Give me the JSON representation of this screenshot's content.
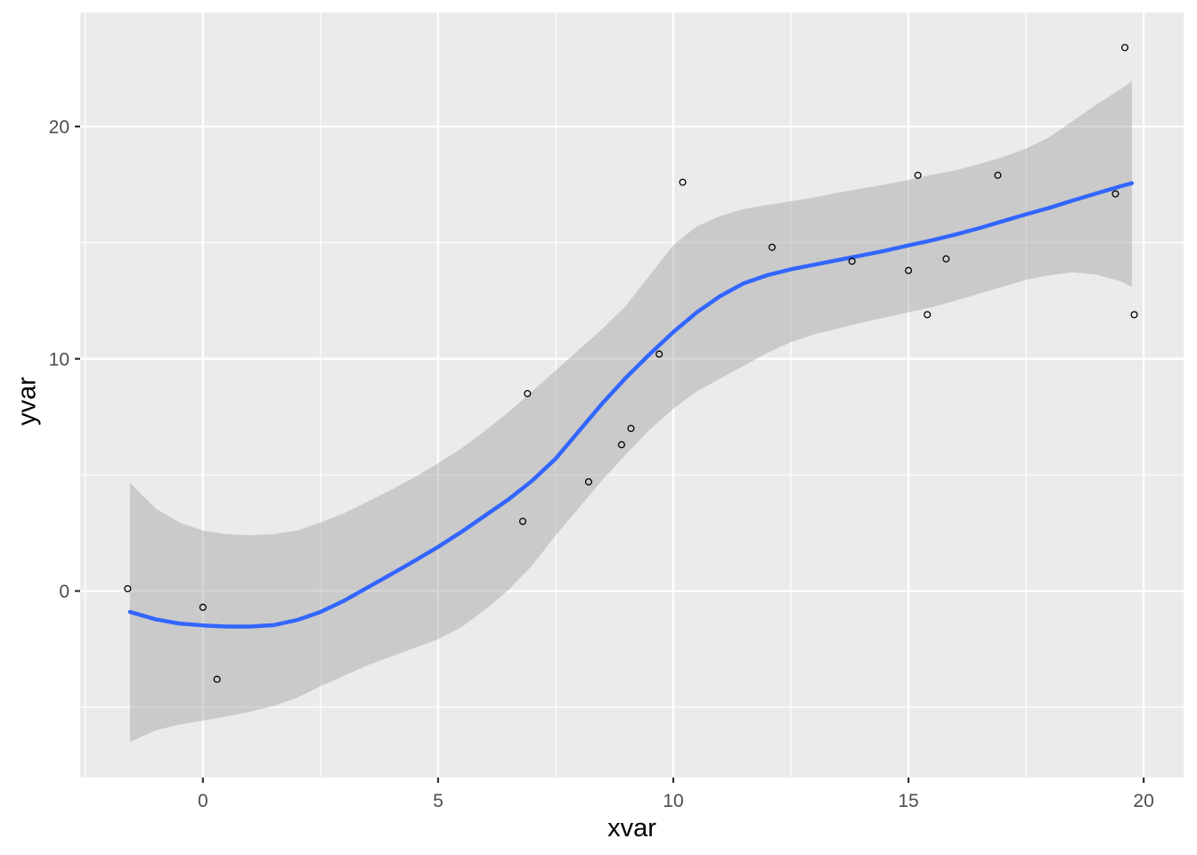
{
  "chart_data": {
    "type": "scatter",
    "title": "",
    "xlabel": "xvar",
    "ylabel": "yvar",
    "legend": "none",
    "grid": true,
    "xlim": [
      -2.61,
      20.85
    ],
    "ylim": [
      -8.03,
      24.91
    ],
    "x_major_ticks": [
      0,
      5,
      10,
      15,
      20
    ],
    "x_tick_labels": [
      "0",
      "5",
      "10",
      "15",
      "20"
    ],
    "x_minor_ticks": [
      -2.5,
      2.5,
      7.5,
      12.5,
      17.5
    ],
    "y_major_ticks": [
      0,
      10,
      20
    ],
    "y_tick_labels": [
      "0",
      "10",
      "20"
    ],
    "y_minor_ticks": [
      -5,
      5,
      15
    ],
    "points": [
      [
        -1.6,
        0.1
      ],
      [
        0.0,
        -0.7
      ],
      [
        0.3,
        -3.8
      ],
      [
        6.8,
        3.0
      ],
      [
        6.9,
        8.5
      ],
      [
        8.2,
        4.7
      ],
      [
        8.9,
        6.3
      ],
      [
        9.1,
        7.0
      ],
      [
        9.7,
        10.2
      ],
      [
        10.2,
        17.6
      ],
      [
        12.1,
        14.8
      ],
      [
        13.8,
        14.2
      ],
      [
        15.0,
        13.8
      ],
      [
        15.2,
        17.9
      ],
      [
        15.4,
        11.9
      ],
      [
        15.8,
        14.3
      ],
      [
        16.9,
        17.9
      ],
      [
        19.4,
        17.1
      ],
      [
        19.6,
        23.4
      ],
      [
        19.8,
        11.9
      ]
    ],
    "smooth_line": [
      [
        -1.55,
        -0.9
      ],
      [
        -1.0,
        -1.22
      ],
      [
        -0.5,
        -1.4
      ],
      [
        0.0,
        -1.48
      ],
      [
        0.5,
        -1.53
      ],
      [
        1.0,
        -1.53
      ],
      [
        1.5,
        -1.47
      ],
      [
        2.0,
        -1.25
      ],
      [
        2.5,
        -0.9
      ],
      [
        3.0,
        -0.42
      ],
      [
        3.5,
        0.15
      ],
      [
        4.0,
        0.72
      ],
      [
        4.5,
        1.3
      ],
      [
        5.0,
        1.9
      ],
      [
        5.5,
        2.55
      ],
      [
        6.0,
        3.25
      ],
      [
        6.5,
        3.95
      ],
      [
        7.0,
        4.75
      ],
      [
        7.5,
        5.7
      ],
      [
        8.0,
        6.9
      ],
      [
        8.5,
        8.1
      ],
      [
        9.0,
        9.2
      ],
      [
        9.5,
        10.2
      ],
      [
        10.0,
        11.15
      ],
      [
        10.5,
        12.0
      ],
      [
        11.0,
        12.7
      ],
      [
        11.5,
        13.25
      ],
      [
        12.0,
        13.6
      ],
      [
        12.5,
        13.85
      ],
      [
        13.0,
        14.05
      ],
      [
        13.5,
        14.25
      ],
      [
        14.0,
        14.45
      ],
      [
        14.5,
        14.65
      ],
      [
        15.0,
        14.88
      ],
      [
        15.5,
        15.1
      ],
      [
        16.0,
        15.35
      ],
      [
        16.5,
        15.62
      ],
      [
        17.0,
        15.92
      ],
      [
        17.5,
        16.22
      ],
      [
        18.0,
        16.5
      ],
      [
        18.5,
        16.82
      ],
      [
        19.0,
        17.12
      ],
      [
        19.5,
        17.42
      ],
      [
        19.75,
        17.56
      ]
    ],
    "ribbon_upper": [
      [
        -1.55,
        4.65
      ],
      [
        -1.0,
        3.55
      ],
      [
        -0.5,
        2.95
      ],
      [
        0.0,
        2.6
      ],
      [
        0.5,
        2.45
      ],
      [
        1.0,
        2.4
      ],
      [
        1.5,
        2.45
      ],
      [
        2.0,
        2.6
      ],
      [
        2.5,
        2.95
      ],
      [
        3.0,
        3.35
      ],
      [
        3.5,
        3.85
      ],
      [
        4.0,
        4.35
      ],
      [
        4.5,
        4.9
      ],
      [
        5.0,
        5.5
      ],
      [
        5.5,
        6.15
      ],
      [
        6.0,
        6.9
      ],
      [
        6.5,
        7.7
      ],
      [
        7.0,
        8.6
      ],
      [
        7.5,
        9.5
      ],
      [
        8.0,
        10.4
      ],
      [
        8.5,
        11.3
      ],
      [
        9.0,
        12.3
      ],
      [
        9.5,
        13.6
      ],
      [
        10.0,
        14.9
      ],
      [
        10.5,
        15.7
      ],
      [
        11.0,
        16.15
      ],
      [
        11.5,
        16.45
      ],
      [
        12.0,
        16.62
      ],
      [
        12.5,
        16.78
      ],
      [
        13.0,
        16.95
      ],
      [
        13.5,
        17.15
      ],
      [
        14.0,
        17.33
      ],
      [
        14.5,
        17.5
      ],
      [
        15.0,
        17.7
      ],
      [
        15.5,
        17.92
      ],
      [
        16.0,
        18.12
      ],
      [
        16.5,
        18.38
      ],
      [
        17.0,
        18.68
      ],
      [
        17.5,
        19.05
      ],
      [
        18.0,
        19.55
      ],
      [
        18.5,
        20.25
      ],
      [
        19.0,
        20.95
      ],
      [
        19.5,
        21.6
      ],
      [
        19.75,
        21.95
      ]
    ],
    "ribbon_lower": [
      [
        -1.55,
        -6.5
      ],
      [
        -1.0,
        -6.0
      ],
      [
        -0.5,
        -5.75
      ],
      [
        0.0,
        -5.58
      ],
      [
        0.5,
        -5.4
      ],
      [
        1.0,
        -5.2
      ],
      [
        1.5,
        -4.95
      ],
      [
        2.0,
        -4.6
      ],
      [
        2.5,
        -4.1
      ],
      [
        3.0,
        -3.65
      ],
      [
        3.5,
        -3.2
      ],
      [
        4.0,
        -2.82
      ],
      [
        4.5,
        -2.45
      ],
      [
        5.0,
        -2.08
      ],
      [
        5.5,
        -1.55
      ],
      [
        6.0,
        -0.8
      ],
      [
        6.5,
        0.05
      ],
      [
        7.0,
        1.1
      ],
      [
        7.5,
        2.4
      ],
      [
        8.0,
        3.6
      ],
      [
        8.5,
        4.8
      ],
      [
        9.0,
        5.9
      ],
      [
        9.5,
        6.95
      ],
      [
        10.0,
        7.85
      ],
      [
        10.5,
        8.6
      ],
      [
        11.0,
        9.15
      ],
      [
        11.5,
        9.7
      ],
      [
        12.0,
        10.25
      ],
      [
        12.5,
        10.72
      ],
      [
        13.0,
        11.05
      ],
      [
        13.5,
        11.3
      ],
      [
        14.0,
        11.55
      ],
      [
        14.5,
        11.78
      ],
      [
        15.0,
        12.0
      ],
      [
        15.5,
        12.22
      ],
      [
        16.0,
        12.5
      ],
      [
        16.5,
        12.8
      ],
      [
        17.0,
        13.1
      ],
      [
        17.5,
        13.4
      ],
      [
        18.0,
        13.6
      ],
      [
        18.5,
        13.72
      ],
      [
        19.0,
        13.62
      ],
      [
        19.5,
        13.35
      ],
      [
        19.75,
        13.1
      ]
    ],
    "colors": {
      "background": "#FFFFFF",
      "panel_bg": "#EBEBEB",
      "grid": "#FFFFFF",
      "ribbon_fill": "#99999966",
      "smooth_line": "#3366FF",
      "point_stroke": "#000000",
      "tick_mark": "#333333",
      "tick_label": "#4D4D4D",
      "axis_title": "#000000"
    }
  }
}
